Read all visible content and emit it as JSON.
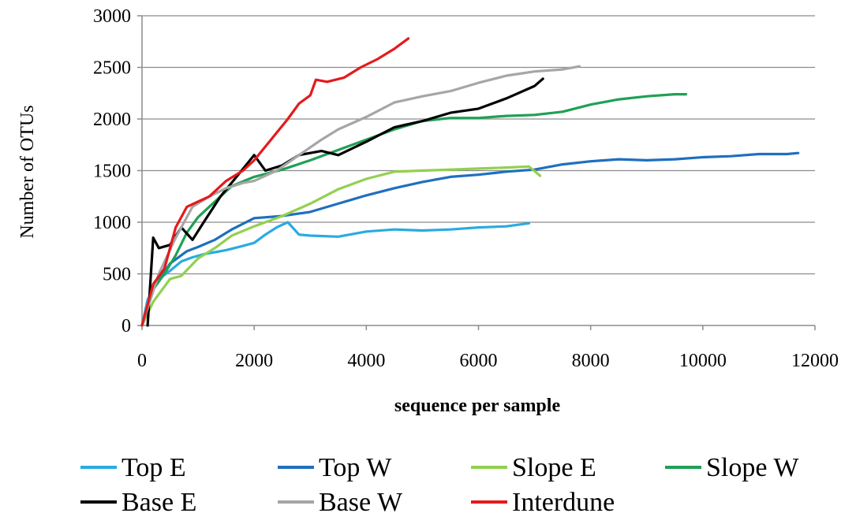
{
  "chart_data": {
    "type": "line",
    "title": "",
    "xlabel": "sequence per sample",
    "ylabel": "Number of OTUs",
    "xlim": [
      0,
      12000
    ],
    "ylim": [
      0,
      3000
    ],
    "xticks": [
      0,
      2000,
      4000,
      6000,
      8000,
      10000,
      12000
    ],
    "yticks": [
      0,
      500,
      1000,
      1500,
      2000,
      2500,
      3000
    ],
    "grid": "horizontal",
    "legend_position": "bottom",
    "series": [
      {
        "name": "Top E",
        "color": "#29abe2",
        "points": [
          [
            0,
            0
          ],
          [
            100,
            250
          ],
          [
            300,
            450
          ],
          [
            500,
            530
          ],
          [
            700,
            620
          ],
          [
            900,
            660
          ],
          [
            1100,
            690
          ],
          [
            1300,
            710
          ],
          [
            1500,
            730
          ],
          [
            1800,
            770
          ],
          [
            2000,
            800
          ],
          [
            2200,
            880
          ],
          [
            2400,
            950
          ],
          [
            2600,
            1000
          ],
          [
            2800,
            880
          ],
          [
            3000,
            870
          ],
          [
            3500,
            860
          ],
          [
            4000,
            910
          ],
          [
            4500,
            930
          ],
          [
            5000,
            920
          ],
          [
            5500,
            930
          ],
          [
            6000,
            950
          ],
          [
            6500,
            960
          ],
          [
            6900,
            990
          ]
        ]
      },
      {
        "name": "Top W",
        "color": "#1f6fbe",
        "points": [
          [
            0,
            0
          ],
          [
            200,
            350
          ],
          [
            500,
            600
          ],
          [
            800,
            720
          ],
          [
            1000,
            760
          ],
          [
            1300,
            830
          ],
          [
            1600,
            930
          ],
          [
            2000,
            1040
          ],
          [
            2500,
            1060
          ],
          [
            3000,
            1100
          ],
          [
            3500,
            1180
          ],
          [
            4000,
            1260
          ],
          [
            4500,
            1330
          ],
          [
            5000,
            1390
          ],
          [
            5500,
            1440
          ],
          [
            6000,
            1460
          ],
          [
            6500,
            1490
          ],
          [
            7000,
            1510
          ],
          [
            7500,
            1560
          ],
          [
            8000,
            1590
          ],
          [
            8500,
            1610
          ],
          [
            9000,
            1600
          ],
          [
            9500,
            1610
          ],
          [
            10000,
            1630
          ],
          [
            10500,
            1640
          ],
          [
            11000,
            1660
          ],
          [
            11500,
            1660
          ],
          [
            11700,
            1670
          ]
        ]
      },
      {
        "name": "Slope E",
        "color": "#92d050",
        "points": [
          [
            0,
            0
          ],
          [
            200,
            230
          ],
          [
            500,
            450
          ],
          [
            700,
            480
          ],
          [
            1000,
            650
          ],
          [
            1300,
            750
          ],
          [
            1600,
            870
          ],
          [
            2000,
            960
          ],
          [
            2500,
            1060
          ],
          [
            3000,
            1180
          ],
          [
            3500,
            1320
          ],
          [
            4000,
            1420
          ],
          [
            4500,
            1490
          ],
          [
            5000,
            1500
          ],
          [
            5500,
            1510
          ],
          [
            6000,
            1520
          ],
          [
            6500,
            1530
          ],
          [
            6900,
            1540
          ],
          [
            7100,
            1450
          ]
        ]
      },
      {
        "name": "Slope W",
        "color": "#1fa055",
        "points": [
          [
            0,
            0
          ],
          [
            200,
            350
          ],
          [
            400,
            500
          ],
          [
            600,
            680
          ],
          [
            800,
            900
          ],
          [
            1000,
            1050
          ],
          [
            1300,
            1200
          ],
          [
            1600,
            1350
          ],
          [
            2000,
            1440
          ],
          [
            2500,
            1510
          ],
          [
            3000,
            1600
          ],
          [
            3500,
            1700
          ],
          [
            4000,
            1800
          ],
          [
            4500,
            1900
          ],
          [
            5000,
            1980
          ],
          [
            5500,
            2010
          ],
          [
            6000,
            2010
          ],
          [
            6500,
            2030
          ],
          [
            7000,
            2040
          ],
          [
            7500,
            2070
          ],
          [
            8000,
            2140
          ],
          [
            8500,
            2190
          ],
          [
            9000,
            2220
          ],
          [
            9500,
            2240
          ],
          [
            9700,
            2240
          ]
        ]
      },
      {
        "name": "Base E",
        "color": "#000000",
        "points": [
          [
            100,
            0
          ],
          [
            200,
            850
          ],
          [
            300,
            750
          ],
          [
            500,
            780
          ],
          [
            700,
            950
          ],
          [
            900,
            830
          ],
          [
            1100,
            1000
          ],
          [
            1400,
            1250
          ],
          [
            1700,
            1450
          ],
          [
            2000,
            1650
          ],
          [
            2200,
            1500
          ],
          [
            2500,
            1550
          ],
          [
            2800,
            1650
          ],
          [
            3200,
            1690
          ],
          [
            3500,
            1650
          ],
          [
            4000,
            1780
          ],
          [
            4500,
            1920
          ],
          [
            5000,
            1980
          ],
          [
            5500,
            2060
          ],
          [
            6000,
            2100
          ],
          [
            6500,
            2200
          ],
          [
            7000,
            2320
          ],
          [
            7150,
            2390
          ]
        ]
      },
      {
        "name": "Base W",
        "color": "#a6a6a6",
        "points": [
          [
            0,
            0
          ],
          [
            300,
            500
          ],
          [
            600,
            850
          ],
          [
            900,
            1150
          ],
          [
            1200,
            1250
          ],
          [
            1500,
            1330
          ],
          [
            1800,
            1380
          ],
          [
            2000,
            1400
          ],
          [
            2400,
            1500
          ],
          [
            2800,
            1650
          ],
          [
            3200,
            1800
          ],
          [
            3500,
            1900
          ],
          [
            4000,
            2020
          ],
          [
            4500,
            2160
          ],
          [
            5000,
            2220
          ],
          [
            5500,
            2270
          ],
          [
            6000,
            2350
          ],
          [
            6500,
            2420
          ],
          [
            7000,
            2460
          ],
          [
            7500,
            2480
          ],
          [
            7800,
            2510
          ]
        ]
      },
      {
        "name": "Interdune",
        "color": "#e41a1c",
        "points": [
          [
            0,
            0
          ],
          [
            200,
            400
          ],
          [
            400,
            550
          ],
          [
            600,
            950
          ],
          [
            800,
            1150
          ],
          [
            1000,
            1200
          ],
          [
            1200,
            1250
          ],
          [
            1500,
            1400
          ],
          [
            1800,
            1500
          ],
          [
            2000,
            1600
          ],
          [
            2300,
            1800
          ],
          [
            2600,
            2000
          ],
          [
            2800,
            2150
          ],
          [
            3000,
            2230
          ],
          [
            3100,
            2380
          ],
          [
            3300,
            2360
          ],
          [
            3600,
            2400
          ],
          [
            3900,
            2500
          ],
          [
            4200,
            2580
          ],
          [
            4500,
            2680
          ],
          [
            4750,
            2780
          ]
        ]
      }
    ]
  }
}
